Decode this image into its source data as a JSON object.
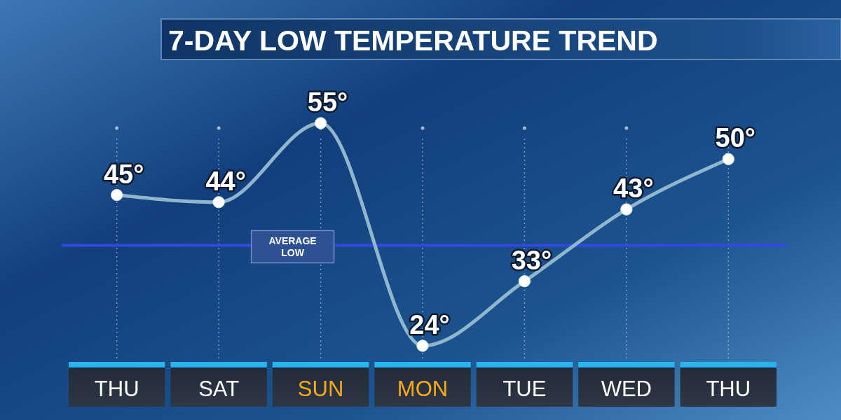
{
  "chart_data": {
    "type": "line",
    "title": "7-DAY LOW TEMPERATURE TREND",
    "categories": [
      "THU",
      "SAT",
      "SUN",
      "MON",
      "TUE",
      "WED",
      "THU"
    ],
    "values": [
      45,
      44,
      55,
      24,
      33,
      43,
      50
    ],
    "value_labels": [
      "45°",
      "44°",
      "55°",
      "24°",
      "33°",
      "43°",
      "50°"
    ],
    "color": "#8fb6cc",
    "marker": "circle",
    "tick_labels": "x",
    "grid": "x",
    "ref_lines": [
      {
        "axis": "y",
        "value": 38,
        "label": "AVERAGE LOW",
        "color": "#3346e6"
      }
    ]
  }
}
